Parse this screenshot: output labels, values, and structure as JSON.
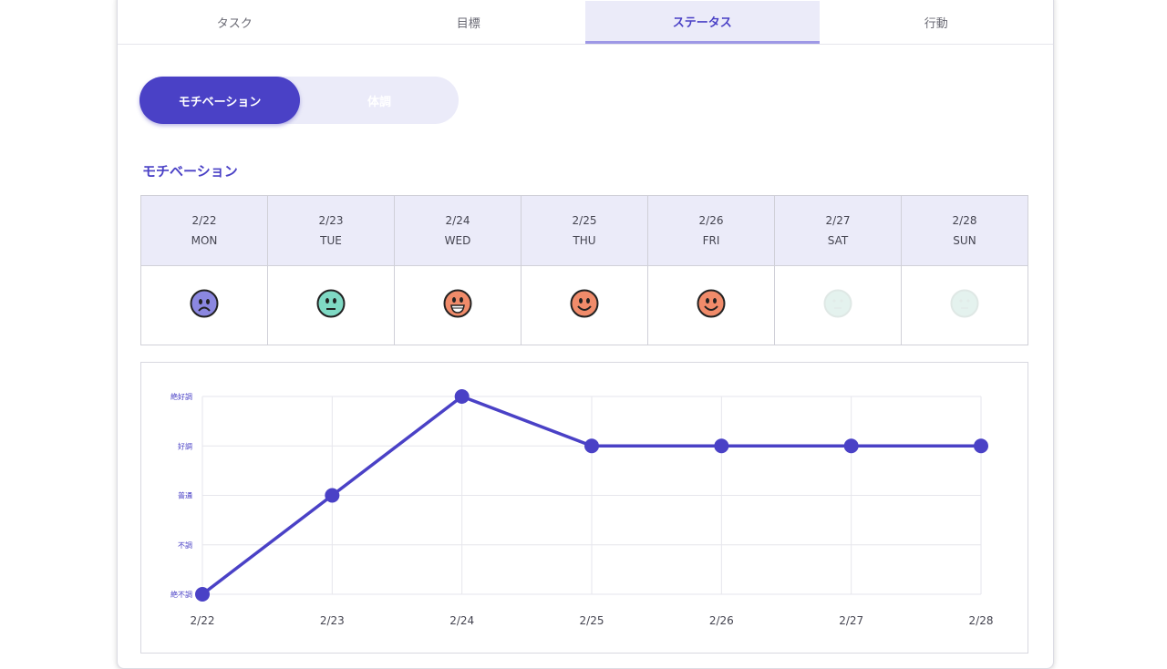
{
  "tabs": [
    {
      "label": "タスク",
      "active": false
    },
    {
      "label": "目標",
      "active": false
    },
    {
      "label": "ステータス",
      "active": true
    },
    {
      "label": "行動",
      "active": false
    }
  ],
  "toggle": {
    "on_label": "モチベーション",
    "off_label": "体調"
  },
  "section_title": "モチベーション",
  "week": [
    {
      "date": "2/22",
      "day": "MON",
      "mood": "sad",
      "color": "#8b87e0"
    },
    {
      "date": "2/23",
      "day": "TUE",
      "mood": "neutral",
      "color": "#7fd9c4"
    },
    {
      "date": "2/24",
      "day": "WED",
      "mood": "grin",
      "color": "#f08b6a"
    },
    {
      "date": "2/25",
      "day": "THU",
      "mood": "smile",
      "color": "#f08b6a"
    },
    {
      "date": "2/26",
      "day": "FRI",
      "mood": "smile",
      "color": "#f08b6a"
    },
    {
      "date": "2/27",
      "day": "SAT",
      "mood": "empty",
      "color": "#e4f2ee"
    },
    {
      "date": "2/28",
      "day": "SUN",
      "mood": "empty",
      "color": "#e4f2ee"
    }
  ],
  "chart_data": {
    "type": "line",
    "categories": [
      "2/22",
      "2/23",
      "2/24",
      "2/25",
      "2/26",
      "2/27",
      "2/28"
    ],
    "y_levels": [
      "絶不調",
      "不調",
      "普通",
      "好調",
      "絶好調"
    ],
    "series": [
      {
        "values": [
          0,
          2,
          4,
          3,
          3,
          3,
          3
        ]
      }
    ],
    "ylim": [
      0,
      4
    ],
    "grid": true,
    "line_color": "#4a41c6"
  }
}
